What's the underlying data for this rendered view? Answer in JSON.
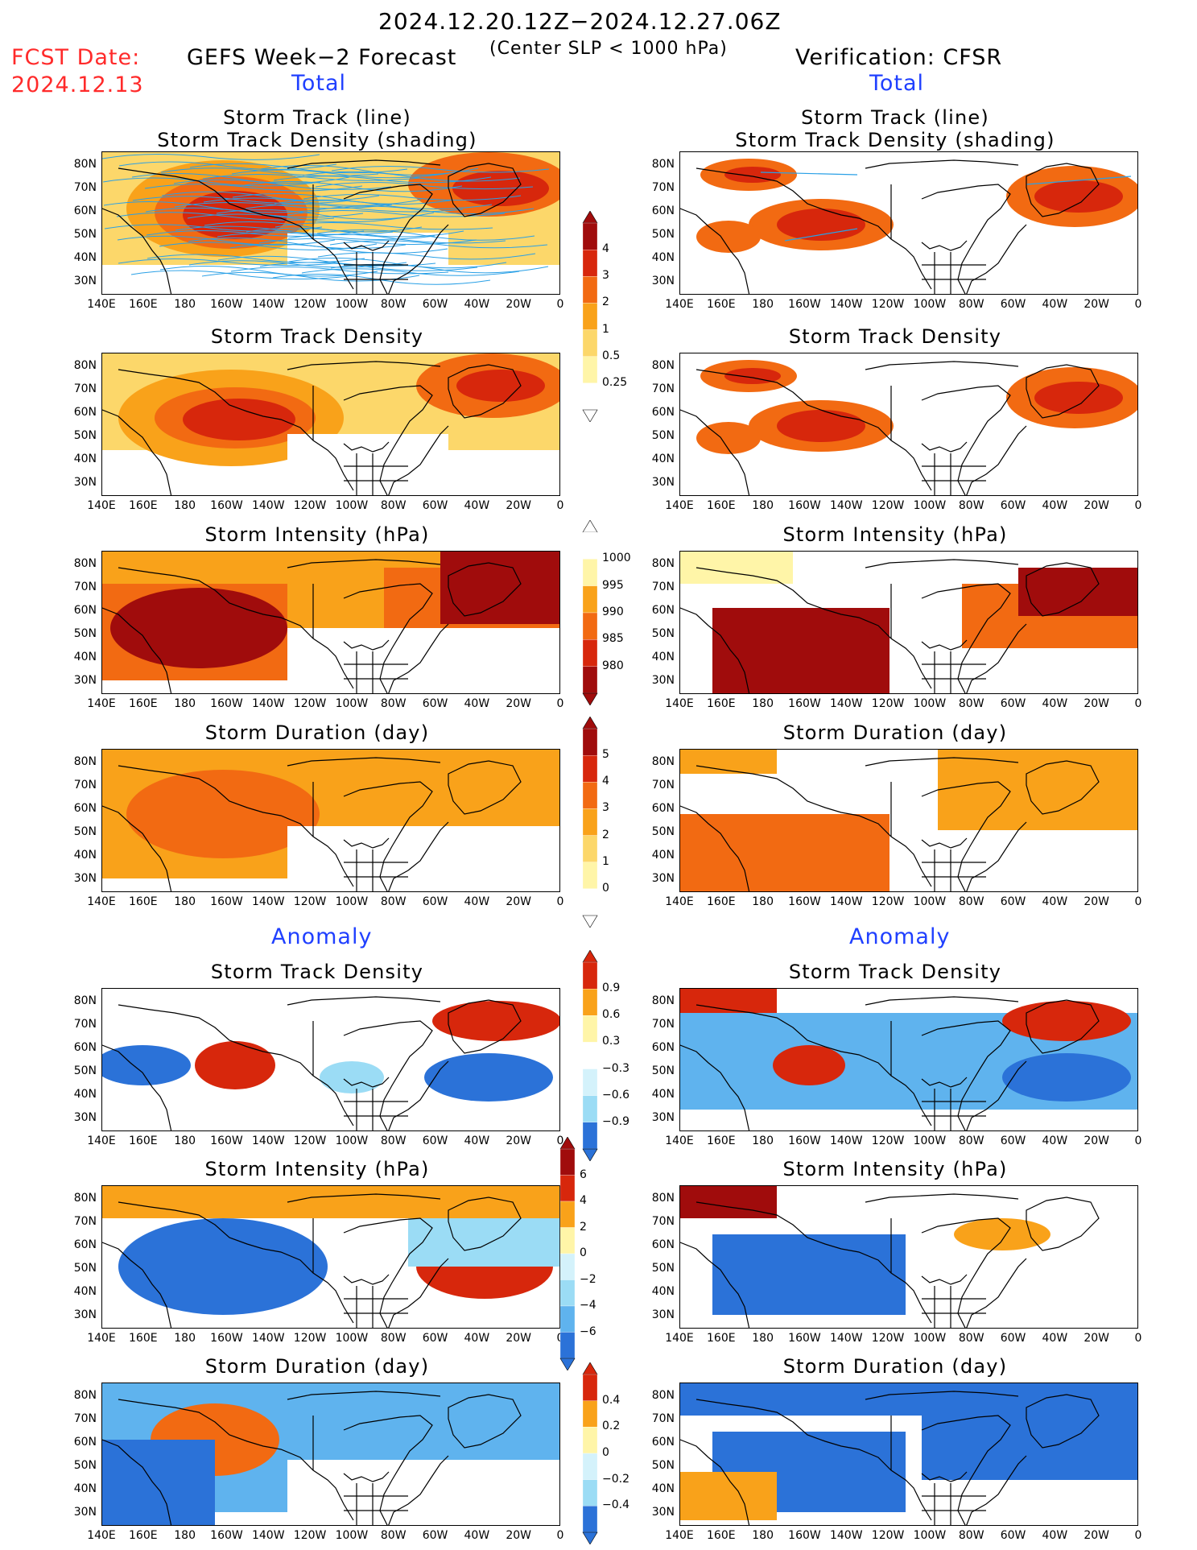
{
  "header": {
    "date_range": "2024.12.20.12Z−2024.12.27.06Z",
    "fcst_label": "FCST Date:",
    "fcst_date": "2024.12.13",
    "forecast_title": "GEFS Week−2 Forecast",
    "center_slp": "(Center SLP < 1000 hPa)",
    "verification": "Verification: CFSR"
  },
  "section_labels": {
    "total_left": "Total",
    "total_right": "Total",
    "anomaly_left": "Anomaly",
    "anomaly_right": "Anomaly"
  },
  "panels": {
    "track_line": "Storm Track (line)",
    "track_density_shading": "Storm Track Density (shading)",
    "track_density": "Storm Track Density",
    "intensity": "Storm Intensity (hPa)",
    "duration": "Storm Duration (day)"
  },
  "axes": {
    "lat_labels": [
      "80N",
      "70N",
      "60N",
      "50N",
      "40N",
      "30N"
    ],
    "lon_labels": [
      "140E",
      "160E",
      "180",
      "160W",
      "140W",
      "120W",
      "100W",
      "80W",
      "60W",
      "40W",
      "20W",
      "0"
    ]
  },
  "colorbars": {
    "density_total": [
      "4",
      "3",
      "2",
      "1",
      "0.5",
      "0.25"
    ],
    "intensity_total": [
      "1000",
      "995",
      "990",
      "985",
      "980"
    ],
    "duration_total": [
      "5",
      "4",
      "3",
      "2",
      "1",
      "0"
    ],
    "density_anom": [
      "0.9",
      "0.6",
      "0.3",
      "−0.3",
      "−0.6",
      "−0.9"
    ],
    "intensity_anom": [
      "6",
      "4",
      "2",
      "0",
      "−2",
      "−4",
      "−6"
    ],
    "duration_anom": [
      "0.4",
      "0.2",
      "0",
      "−0.2",
      "−0.4"
    ]
  },
  "colors": {
    "warm": [
      "#fff5a8",
      "#fcd76a",
      "#f9a21a",
      "#f26a12",
      "#d7270c",
      "#a00c0c"
    ],
    "cool": [
      "#d4f2fb",
      "#9bdcf5",
      "#5fb3ee",
      "#2b72d8"
    ],
    "track_line": "#2aa0e6",
    "title_red": "#ff2a2a",
    "label_blue": "#2040ff"
  }
}
